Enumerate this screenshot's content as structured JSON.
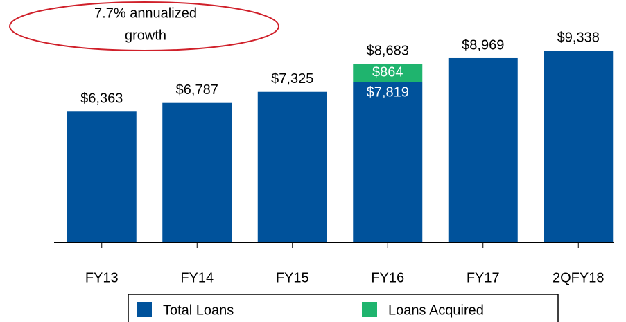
{
  "chart_data": {
    "type": "stacked_bar",
    "annotation": [
      "7.7% annualized",
      "growth"
    ],
    "categories": [
      "FY13",
      "FY14",
      "FY15",
      "FY16",
      "FY17",
      "2QFY18"
    ],
    "series": [
      {
        "name": "Total Loans",
        "color": "#00529b",
        "values": [
          6363,
          6787,
          7325,
          7819,
          8969,
          9338
        ],
        "value_labels": [
          null,
          null,
          null,
          "$7,819",
          null,
          null
        ]
      },
      {
        "name": "Loans Acquired",
        "color": "#1fb46e",
        "values": [
          null,
          null,
          null,
          864,
          null,
          null
        ],
        "value_labels": [
          null,
          null,
          null,
          "$864",
          null,
          null
        ]
      }
    ],
    "totals": [
      6363,
      6787,
      7325,
      8683,
      8969,
      9338
    ],
    "total_labels": [
      "$6,363",
      "$6,787",
      "$7,325",
      "$8,683",
      "$8,969",
      "$9,338"
    ],
    "ylim": [
      0,
      11800
    ],
    "legend": "bottom"
  }
}
